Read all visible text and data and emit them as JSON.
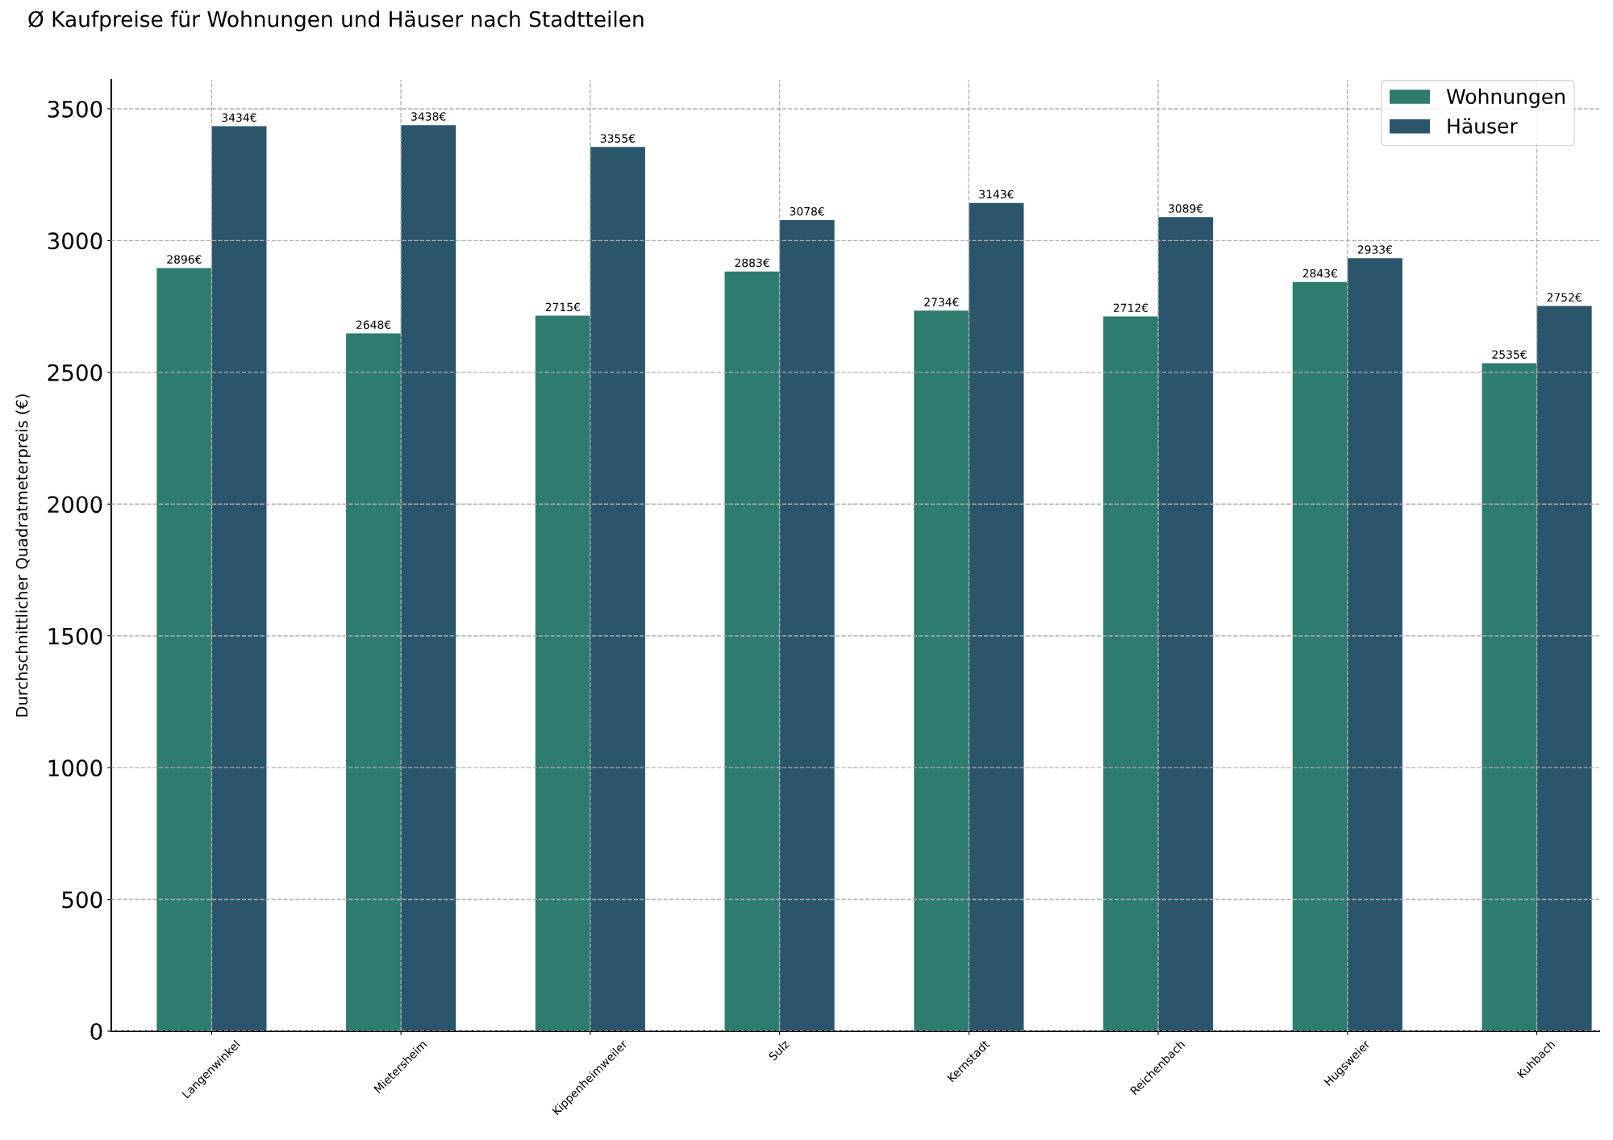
{
  "chart_data": {
    "type": "bar",
    "title": "Ø Kaufpreise für Wohnungen und Häuser nach Stadtteilen",
    "ylabel": "Durchschnittlicher Quadratmeterpreis (€)",
    "categories": [
      "Langenwinkel",
      "Mietersheim",
      "Kippenheimweiler",
      "Sulz",
      "Kernstadt",
      "Reichenbach",
      "Hugsweier",
      "Kuhbach"
    ],
    "series": [
      {
        "name": "Wohnungen",
        "color": "#2e7b70",
        "values": [
          2896,
          2648,
          2715,
          2883,
          2734,
          2712,
          2843,
          2535
        ],
        "value_labels": [
          "2896€",
          "2648€",
          "2715€",
          "2883€",
          "2734€",
          "2712€",
          "2843€",
          "2535€"
        ]
      },
      {
        "name": "Häuser",
        "color": "#2b556b",
        "values": [
          3434,
          3438,
          3355,
          3078,
          3143,
          3089,
          2933,
          2752
        ],
        "value_labels": [
          "3434€",
          "3438€",
          "3355€",
          "3078€",
          "3143€",
          "3089€",
          "2933€",
          "2752€"
        ]
      }
    ],
    "ylim": [
      0,
      3610
    ],
    "yticks": [
      0,
      500,
      1000,
      1500,
      2000,
      2500,
      3000,
      3500
    ],
    "grid": true,
    "legend": "top right"
  }
}
